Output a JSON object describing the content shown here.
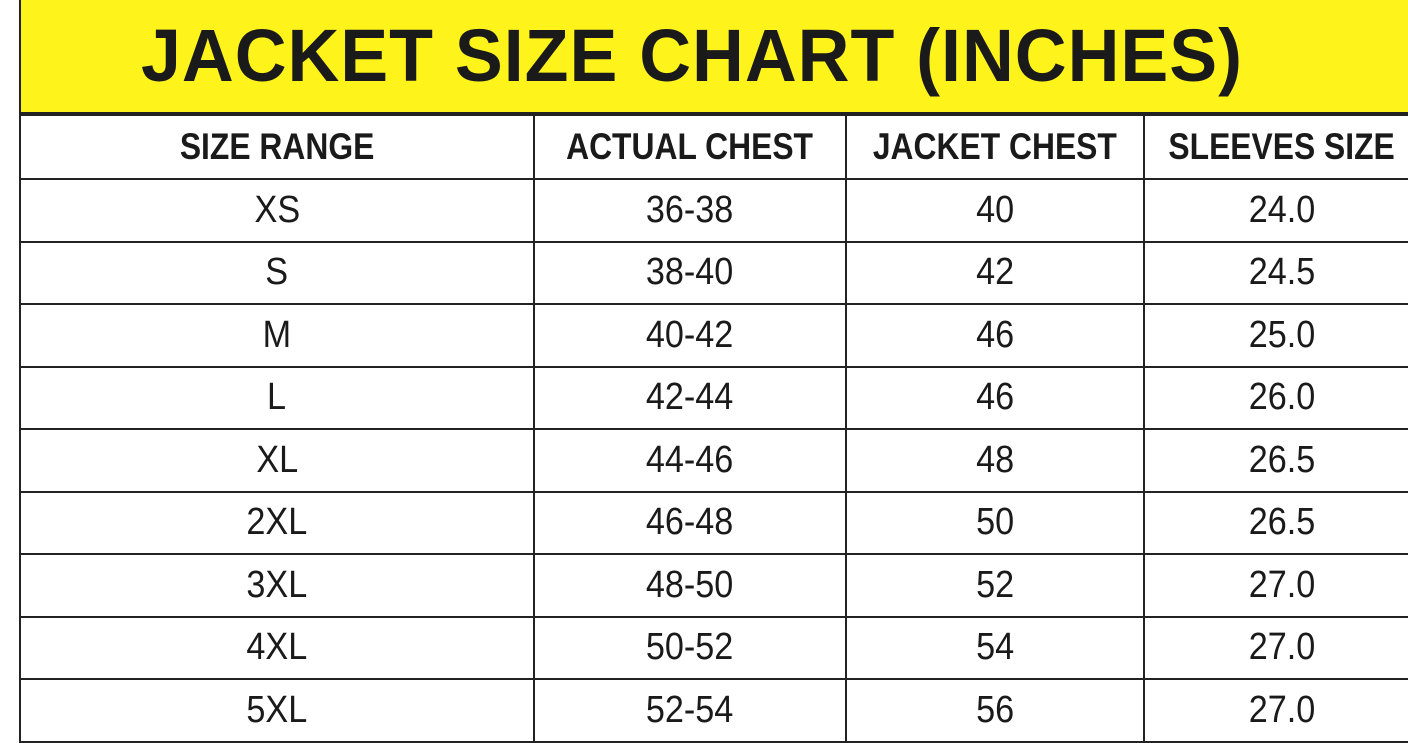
{
  "title": "JACKET SIZE CHART (INCHES)",
  "colors": {
    "title_background": "#fff31c",
    "border": "#222222"
  },
  "columns": [
    "SIZE RANGE",
    "ACTUAL CHEST",
    "JACKET CHEST",
    "SLEEVES SIZE"
  ],
  "rows": [
    [
      "XS",
      "36-38",
      "40",
      "24.0"
    ],
    [
      "S",
      "38-40",
      "42",
      "24.5"
    ],
    [
      "M",
      "40-42",
      "46",
      "25.0"
    ],
    [
      "L",
      "42-44",
      "46",
      "26.0"
    ],
    [
      "XL",
      "44-46",
      "48",
      "26.5"
    ],
    [
      "2XL",
      "46-48",
      "50",
      "26.5"
    ],
    [
      "3XL",
      "48-50",
      "52",
      "27.0"
    ],
    [
      "4XL",
      "50-52",
      "54",
      "27.0"
    ],
    [
      "5XL",
      "52-54",
      "56",
      "27.0"
    ]
  ]
}
